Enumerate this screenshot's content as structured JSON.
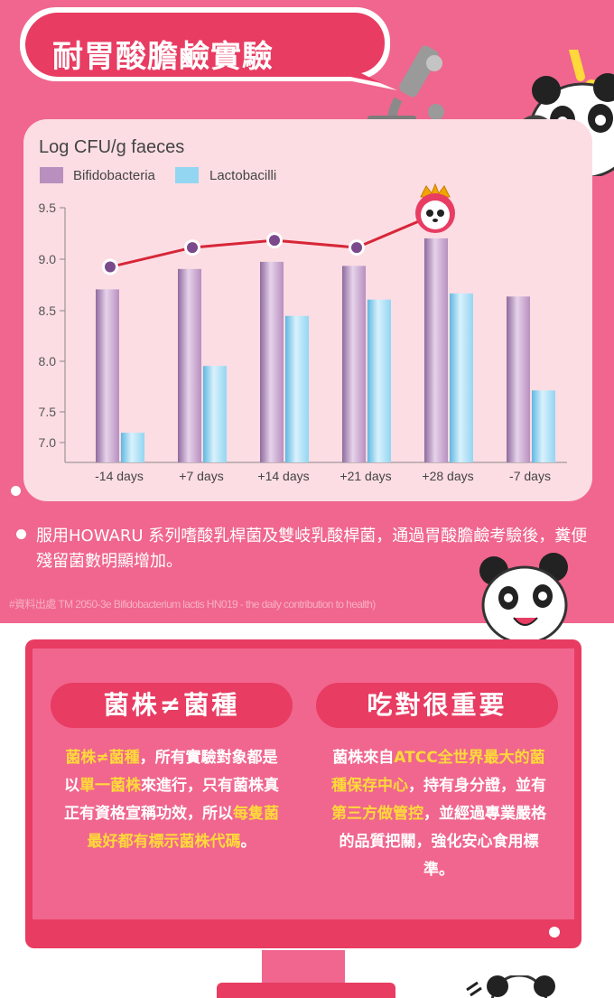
{
  "header": {
    "title": "耐胃酸膽鹼實驗"
  },
  "chart_data": {
    "type": "bar",
    "ylabel": "Log CFU/g faeces",
    "categories": [
      "-14 days",
      "+7 days",
      "+14 days",
      "+21 days",
      "+28 days",
      "-7 days"
    ],
    "y_ticks": [
      "9.5",
      "9.0",
      "8.5",
      "8.0",
      "7.5",
      "7.0"
    ],
    "ylim": [
      7.0,
      9.5
    ],
    "legend": "top-left",
    "series": [
      {
        "name": "Bifidobacteria",
        "values": [
          8.7,
          8.9,
          8.97,
          8.93,
          9.2,
          8.63
        ]
      },
      {
        "name": "Lactobacilli",
        "values": [
          7.16,
          7.95,
          8.44,
          8.6,
          8.66,
          7.71
        ]
      }
    ],
    "line_values": [
      8.92,
      9.11,
      9.18,
      9.11,
      9.45
    ],
    "colors": {
      "bifido": "#b88fbf",
      "lacto": "#93d6f2",
      "line": "#d72638",
      "marker": "#7a4a8c"
    }
  },
  "body": {
    "bullet": "服用HOWARU 系列嗜酸乳桿菌及雙岐乳酸桿菌，通過胃酸膽鹼考驗後，糞便殘留菌數明顯增加。",
    "source": "#資料出處 TM 2050-3e Bifidobacterium lactis HN019 - the daily contribution to health)"
  },
  "left_col": {
    "heading": "菌株≠菌種",
    "parts": [
      {
        "t": "菌株≠菌種",
        "hl": true
      },
      {
        "t": "，所有實驗對象都是以",
        "hl": false
      },
      {
        "t": "單一菌株",
        "hl": true
      },
      {
        "t": "來進行，只有菌株真正有資格宣稱功效，所以",
        "hl": false
      },
      {
        "t": "每隻菌最好都有標示菌株代碼",
        "hl": true
      },
      {
        "t": "。",
        "hl": false
      }
    ]
  },
  "right_col": {
    "heading": "吃對很重要",
    "parts": [
      {
        "t": "菌株來自",
        "hl": false
      },
      {
        "t": "ATCC全世界最大的菌種保存中心",
        "hl": true
      },
      {
        "t": "，持有身分證，並有",
        "hl": false
      },
      {
        "t": "第三方做管控",
        "hl": true
      },
      {
        "t": "，並經過專業嚴格的品質把關，強化安心食用標準。",
        "hl": false
      }
    ]
  }
}
